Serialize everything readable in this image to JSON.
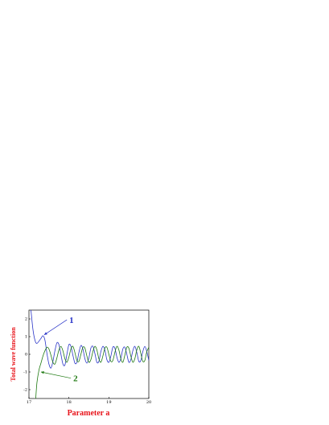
{
  "chart_data": {
    "type": "line",
    "xlabel": "Parameter a",
    "ylabel": "Total wave function",
    "xlim": [
      17,
      20
    ],
    "ylim": [
      -2.5,
      2.5
    ],
    "x_ticks": [
      "17",
      "18",
      "19",
      "20"
    ],
    "y_ticks": [
      "-2",
      "-1",
      "0",
      "1",
      "2"
    ],
    "grid": false,
    "series": [
      {
        "name": "1",
        "color": "#2a35c8",
        "points": [
          [
            17.05,
            2.5
          ],
          [
            17.1,
            1.4
          ],
          [
            17.15,
            0.8
          ],
          [
            17.2,
            0.62
          ],
          [
            17.3,
            0.9
          ],
          [
            17.35,
            1.05
          ],
          [
            17.4,
            0.8
          ],
          [
            17.45,
            0.05
          ],
          [
            17.5,
            -0.55
          ],
          [
            17.55,
            -0.78
          ],
          [
            17.6,
            -0.4
          ],
          [
            17.65,
            0.2
          ],
          [
            17.7,
            0.65
          ],
          [
            17.75,
            0.55
          ],
          [
            17.8,
            0.0
          ],
          [
            17.85,
            -0.55
          ],
          [
            17.9,
            -0.6
          ],
          [
            17.95,
            0.0
          ],
          [
            18.0,
            0.55
          ],
          [
            18.05,
            0.45
          ],
          [
            18.1,
            -0.05
          ],
          [
            18.15,
            -0.5
          ],
          [
            18.2,
            -0.45
          ],
          [
            18.25,
            0.1
          ],
          [
            18.3,
            0.5
          ],
          [
            18.35,
            0.3
          ],
          [
            18.4,
            -0.25
          ],
          [
            18.45,
            -0.5
          ],
          [
            18.5,
            -0.2
          ],
          [
            18.55,
            0.35
          ],
          [
            18.6,
            0.45
          ],
          [
            18.65,
            0.05
          ],
          [
            18.7,
            -0.45
          ],
          [
            18.75,
            -0.4
          ],
          [
            18.8,
            0.15
          ],
          [
            18.85,
            0.45
          ],
          [
            18.9,
            0.25
          ],
          [
            18.95,
            -0.3
          ],
          [
            19.0,
            -0.45
          ],
          [
            19.05,
            -0.1
          ],
          [
            19.1,
            0.4
          ],
          [
            19.15,
            0.35
          ],
          [
            19.2,
            -0.15
          ],
          [
            19.25,
            -0.45
          ],
          [
            19.3,
            -0.25
          ],
          [
            19.35,
            0.3
          ],
          [
            19.4,
            0.4
          ],
          [
            19.45,
            0.0
          ],
          [
            19.5,
            -0.45
          ],
          [
            19.55,
            -0.3
          ],
          [
            19.6,
            0.2
          ],
          [
            19.65,
            0.45
          ],
          [
            19.7,
            0.1
          ],
          [
            19.75,
            -0.4
          ],
          [
            19.8,
            -0.35
          ],
          [
            19.85,
            0.15
          ],
          [
            19.9,
            0.45
          ],
          [
            19.95,
            0.15
          ],
          [
            20.0,
            -0.35
          ]
        ]
      },
      {
        "name": "2",
        "color": "#1f7a12",
        "points": [
          [
            17.17,
            -2.5
          ],
          [
            17.2,
            -1.6
          ],
          [
            17.25,
            -0.9
          ],
          [
            17.3,
            -0.5
          ],
          [
            17.35,
            -0.1
          ],
          [
            17.4,
            0.2
          ],
          [
            17.45,
            0.4
          ],
          [
            17.5,
            0.3
          ],
          [
            17.55,
            -0.05
          ],
          [
            17.6,
            -0.45
          ],
          [
            17.65,
            -0.55
          ],
          [
            17.7,
            -0.2
          ],
          [
            17.75,
            0.25
          ],
          [
            17.8,
            0.45
          ],
          [
            17.85,
            0.2
          ],
          [
            17.9,
            -0.25
          ],
          [
            17.95,
            -0.45
          ],
          [
            18.0,
            -0.15
          ],
          [
            18.05,
            0.3
          ],
          [
            18.1,
            0.45
          ],
          [
            18.15,
            0.1
          ],
          [
            18.2,
            -0.35
          ],
          [
            18.25,
            -0.4
          ],
          [
            18.3,
            0.0
          ],
          [
            18.35,
            0.4
          ],
          [
            18.4,
            0.35
          ],
          [
            18.45,
            -0.1
          ],
          [
            18.5,
            -0.45
          ],
          [
            18.55,
            -0.3
          ],
          [
            18.6,
            0.15
          ],
          [
            18.65,
            0.45
          ],
          [
            18.7,
            0.25
          ],
          [
            18.75,
            -0.25
          ],
          [
            18.8,
            -0.45
          ],
          [
            18.85,
            -0.1
          ],
          [
            18.9,
            0.35
          ],
          [
            18.95,
            0.4
          ],
          [
            19.0,
            0.0
          ],
          [
            19.05,
            -0.4
          ],
          [
            19.1,
            -0.35
          ],
          [
            19.15,
            0.1
          ],
          [
            19.2,
            0.45
          ],
          [
            19.25,
            0.25
          ],
          [
            19.3,
            -0.25
          ],
          [
            19.35,
            -0.45
          ],
          [
            19.4,
            -0.05
          ],
          [
            19.45,
            0.4
          ],
          [
            19.5,
            0.35
          ],
          [
            19.55,
            -0.1
          ],
          [
            19.6,
            -0.45
          ],
          [
            19.65,
            -0.25
          ],
          [
            19.7,
            0.25
          ],
          [
            19.75,
            0.45
          ],
          [
            19.8,
            0.05
          ],
          [
            19.85,
            -0.4
          ],
          [
            19.9,
            -0.35
          ],
          [
            19.95,
            0.15
          ],
          [
            20.0,
            0.4
          ]
        ]
      }
    ],
    "annotations": [
      {
        "text": "1",
        "color": "#2a35c8",
        "from": [
          17.95,
          1.95
        ],
        "to": [
          17.38,
          1.1
        ]
      },
      {
        "text": "2",
        "color": "#1f7a12",
        "from": [
          18.05,
          -1.35
        ],
        "to": [
          17.3,
          -1.0
        ]
      }
    ]
  }
}
